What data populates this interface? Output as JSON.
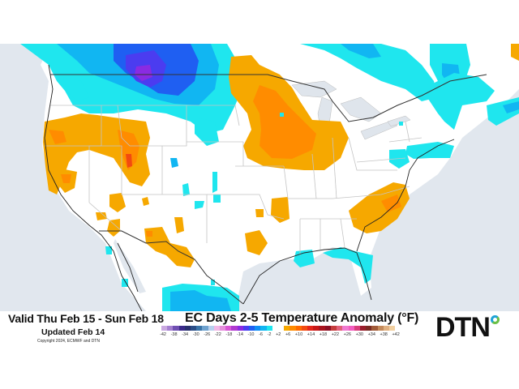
{
  "header": {
    "valid_range": "Valid Thu Feb 15 - Sun Feb 18",
    "updated": "Updated Feb 14",
    "copyright": "Copyright 2024, ECMWF and DTN",
    "title": "EC Days 2-5 Temperature Anomaly (°F)"
  },
  "brand": {
    "logo_text": "DTN",
    "logo_accent_colors": [
      "#1fa3d6",
      "#6abf45"
    ]
  },
  "legend": {
    "unit": "°F",
    "ticks": [
      "-42",
      "-38",
      "-34",
      "-30",
      "-26",
      "-22",
      "-18",
      "-14",
      "-10",
      "-6",
      "-2",
      "+2",
      "+6",
      "+10",
      "+14",
      "+18",
      "+22",
      "+26",
      "+30",
      "+34",
      "+38",
      "+42"
    ],
    "colors": [
      "#c9a8e0",
      "#a47fd0",
      "#6f4fb2",
      "#3b2a8a",
      "#28306e",
      "#2a4d86",
      "#3a74a8",
      "#6ea2cf",
      "#b8d0ee",
      "#f2b8e6",
      "#e58fdc",
      "#d856d6",
      "#b03ad0",
      "#8a2be2",
      "#4b3cf0",
      "#1f5ff2",
      "#0f8ff5",
      "#11b6f2",
      "#1fe6ee",
      "#ffffff",
      "#ffffff",
      "#f6a800",
      "#ff8c00",
      "#ff6a00",
      "#f24a10",
      "#e3261a",
      "#c81818",
      "#a8141e",
      "#8c1024",
      "#c43c3c",
      "#e0607a",
      "#f07ad0",
      "#f25ec0",
      "#d83c7a",
      "#9a1e2c",
      "#7a2a22",
      "#a05a38",
      "#c48a5a",
      "#e0b080",
      "#f2d0a0"
    ]
  },
  "chart_data": {
    "type": "heatmap",
    "title": "EC Days 2-5 Temperature Anomaly (°F)",
    "subtitle": "Valid Thu Feb 15 - Sun Feb 18; Updated Feb 14",
    "region": "Contiguous United States / southern Canada / northern Mexico",
    "colorbar_ticks": [
      -42,
      -38,
      -34,
      -30,
      -26,
      -22,
      -18,
      -14,
      -10,
      -6,
      -2,
      2,
      6,
      10,
      14,
      18,
      22,
      26,
      30,
      34,
      38,
      42
    ],
    "features": [
      {
        "area": "Montana / southern Alberta-Saskatchewan",
        "anomaly": "cold",
        "range_f": [
          -18,
          -6
        ],
        "peak_f": -18
      },
      {
        "area": "Pacific Northwest / northern Rockies",
        "anomaly": "cold",
        "range_f": [
          -6,
          -2
        ]
      },
      {
        "area": "Ontario / Quebec / Maritimes",
        "anomaly": "cold",
        "range_f": [
          -10,
          -2
        ]
      },
      {
        "area": "Northern Mexico / Chihuahua",
        "anomaly": "cold",
        "range_f": [
          -10,
          -2
        ]
      },
      {
        "area": "Gulf Coast / Florida panhandle",
        "anomaly": "cold",
        "range_f": [
          -6,
          -2
        ]
      },
      {
        "area": "Upper Midwest (MN, IA, WI)",
        "anomaly": "warm",
        "range_f": [
          2,
          10
        ]
      },
      {
        "area": "Oregon / Idaho / Nevada / Utah",
        "anomaly": "warm",
        "range_f": [
          2,
          10
        ]
      },
      {
        "area": "Carolinas / Georgia",
        "anomaly": "warm",
        "range_f": [
          2,
          6
        ]
      },
      {
        "area": "Southern Arizona / New Mexico",
        "anomaly": "warm",
        "range_f": [
          2,
          6
        ]
      }
    ]
  }
}
